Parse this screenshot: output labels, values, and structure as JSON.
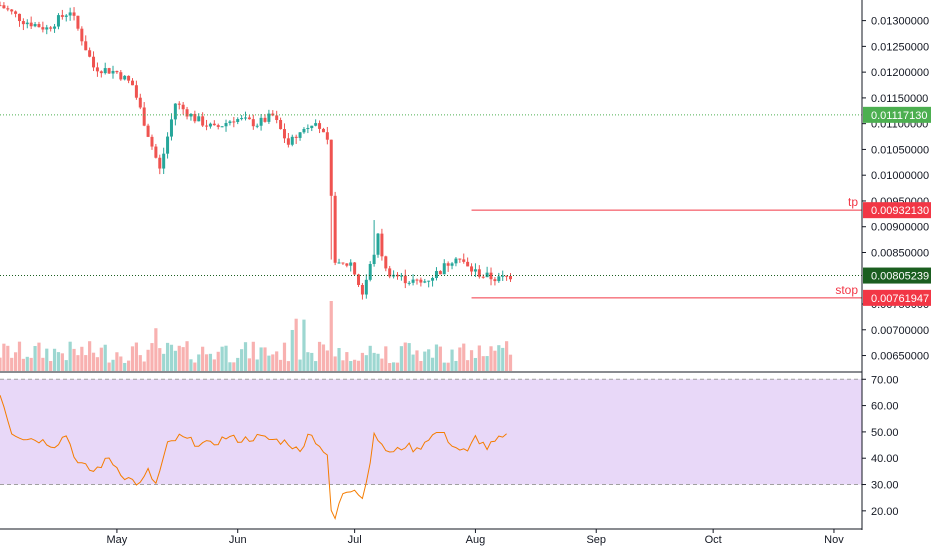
{
  "chart_data": {
    "type": "candlestick",
    "price_axis": {
      "range": [
        0.0062,
        0.0134
      ],
      "ticks": [
        "0.01300000",
        "0.01250000",
        "0.01200000",
        "0.01150000",
        "0.01100000",
        "0.01050000",
        "0.01000000",
        "0.00950000",
        "0.00900000",
        "0.00850000",
        "0.00750000",
        "0.00700000",
        "0.00650000"
      ]
    },
    "rsi_axis": {
      "range": [
        15,
        72
      ],
      "ticks": [
        "70.00",
        "60.00",
        "50.00",
        "40.00",
        "30.00",
        "20.00"
      ],
      "band": [
        30,
        70
      ]
    },
    "time_axis": {
      "labels": [
        "May",
        "Jun",
        "Jul",
        "Aug",
        "Sep",
        "Oct",
        "Nov"
      ],
      "label_days": [
        30,
        61,
        91,
        122,
        153,
        183,
        214
      ],
      "visible_days": [
        0,
        221
      ]
    },
    "horizontal_levels": [
      {
        "name": "tp",
        "label": "tp",
        "value": 0.0093213,
        "tag": "0.00932130",
        "color": "#f23645",
        "style": "solid",
        "start_day": 121
      },
      {
        "name": "stop",
        "label": "stop",
        "value": 0.00761947,
        "tag": "0.00761947",
        "color": "#f23645",
        "style": "solid",
        "start_day": 121
      },
      {
        "name": "upper",
        "label": "",
        "value": 0.0111713,
        "tag": "0.01117130",
        "color": "#4caf50",
        "style": "dotted",
        "start_day": 0
      },
      {
        "name": "last",
        "label": "",
        "value": 0.00805239,
        "tag": "0.00805239",
        "color": "#1b5e20",
        "style": "dotted",
        "start_day": 0
      }
    ],
    "candle_anchors": [
      [
        0,
        0.0133
      ],
      [
        6,
        0.013
      ],
      [
        12,
        0.01285
      ],
      [
        18,
        0.0132
      ],
      [
        24,
        0.0121
      ],
      [
        30,
        0.012
      ],
      [
        34,
        0.01175
      ],
      [
        38,
        0.0108
      ],
      [
        41,
        0.0101
      ],
      [
        45,
        0.0114
      ],
      [
        50,
        0.0111
      ],
      [
        55,
        0.0109
      ],
      [
        60,
        0.0111
      ],
      [
        66,
        0.011
      ],
      [
        70,
        0.01115
      ],
      [
        74,
        0.0106
      ],
      [
        78,
        0.0109
      ],
      [
        81,
        0.0111
      ],
      [
        84,
        0.0106
      ],
      [
        85,
        0.0096
      ],
      [
        86,
        0.0082
      ],
      [
        90,
        0.0083
      ],
      [
        93,
        0.0077
      ],
      [
        96,
        0.0085
      ],
      [
        97,
        0.0088
      ],
      [
        99,
        0.00815
      ],
      [
        103,
        0.008
      ],
      [
        108,
        0.0079
      ],
      [
        113,
        0.00815
      ],
      [
        117,
        0.00845
      ],
      [
        120,
        0.0082
      ],
      [
        124,
        0.00805
      ],
      [
        128,
        0.00798
      ],
      [
        131,
        0.00805
      ]
    ],
    "rsi_anchors": [
      [
        0,
        65
      ],
      [
        3,
        50
      ],
      [
        6,
        48
      ],
      [
        10,
        47
      ],
      [
        14,
        45
      ],
      [
        17,
        49
      ],
      [
        20,
        38
      ],
      [
        24,
        35
      ],
      [
        28,
        40
      ],
      [
        32,
        33
      ],
      [
        36,
        30
      ],
      [
        38,
        35
      ],
      [
        40,
        30
      ],
      [
        43,
        45
      ],
      [
        46,
        48
      ],
      [
        50,
        46
      ],
      [
        54,
        45
      ],
      [
        58,
        48
      ],
      [
        62,
        47
      ],
      [
        66,
        48
      ],
      [
        70,
        47
      ],
      [
        74,
        46
      ],
      [
        77,
        42
      ],
      [
        79,
        50
      ],
      [
        82,
        45
      ],
      [
        84,
        40
      ],
      [
        85,
        20
      ],
      [
        86,
        17
      ],
      [
        88,
        27
      ],
      [
        91,
        29
      ],
      [
        93,
        25
      ],
      [
        95,
        38
      ],
      [
        96,
        51
      ],
      [
        98,
        44
      ],
      [
        101,
        42
      ],
      [
        104,
        45
      ],
      [
        107,
        43
      ],
      [
        110,
        48
      ],
      [
        113,
        50
      ],
      [
        117,
        44
      ],
      [
        120,
        42
      ],
      [
        122,
        48
      ],
      [
        125,
        44
      ],
      [
        128,
        47
      ],
      [
        130,
        48
      ]
    ],
    "colors": {
      "up": "#26a69a",
      "down": "#ef5350",
      "rsi_line": "#f57c00",
      "rsi_band": "#e8d8f8",
      "rsi_band_line": "#a0a0a0"
    }
  }
}
